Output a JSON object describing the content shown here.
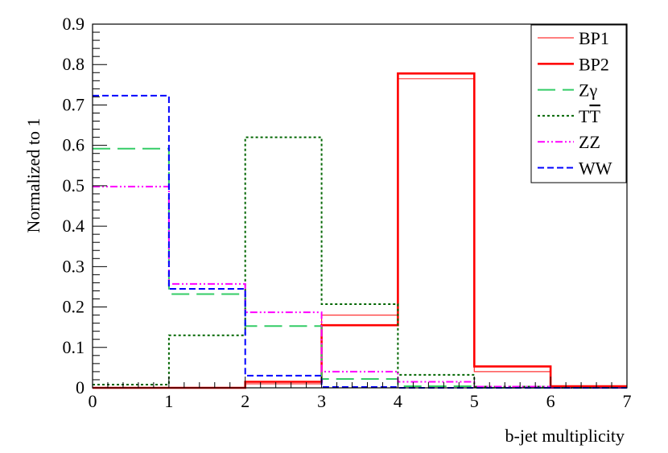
{
  "chart_data": {
    "type": "line",
    "style": "step-histogram",
    "xlabel": "b-jet multiplicity",
    "ylabel": "Normalized to 1",
    "xlim": [
      0,
      7
    ],
    "ylim": [
      0,
      0.9
    ],
    "x_ticks": [
      "0",
      "1",
      "2",
      "3",
      "4",
      "5",
      "6",
      "7"
    ],
    "y_ticks": [
      "0",
      "0.1",
      "0.2",
      "0.3",
      "0.4",
      "0.5",
      "0.6",
      "0.7",
      "0.8",
      "0.9"
    ],
    "bin_edges": [
      0,
      1,
      2,
      3,
      4,
      5,
      6,
      7
    ],
    "legend_position": "top-right",
    "series": [
      {
        "name": "BP1",
        "color": "#ff3333",
        "dash": "solid",
        "width": "thin",
        "values": [
          0.0,
          0.0,
          0.01,
          0.18,
          0.765,
          0.04,
          0.002
        ]
      },
      {
        "name": "BP2",
        "color": "#ff0000",
        "dash": "solid",
        "width": "thick",
        "values": [
          0.0,
          0.0,
          0.015,
          0.155,
          0.778,
          0.053,
          0.004
        ]
      },
      {
        "name": "Zγ",
        "color": "#33cc66",
        "dash": "long-dash",
        "width": "medium",
        "values": [
          0.592,
          0.232,
          0.153,
          0.022,
          0.004,
          0.0,
          0.0
        ]
      },
      {
        "name": "TT",
        "name_overline": "T",
        "color": "#006600",
        "dash": "dotted",
        "width": "medium",
        "values": [
          0.008,
          0.13,
          0.62,
          0.207,
          0.032,
          0.003,
          0.0
        ]
      },
      {
        "name": "ZZ",
        "color": "#ff00ff",
        "dash": "dash-dot",
        "width": "medium",
        "values": [
          0.498,
          0.257,
          0.187,
          0.04,
          0.015,
          0.003,
          0.0
        ]
      },
      {
        "name": "WW",
        "color": "#0000ff",
        "dash": "dashed",
        "width": "medium",
        "values": [
          0.723,
          0.245,
          0.03,
          0.002,
          0.0,
          0.0,
          0.0
        ]
      }
    ]
  }
}
